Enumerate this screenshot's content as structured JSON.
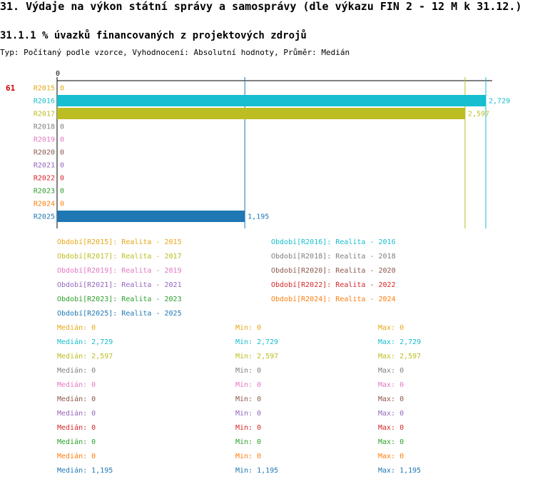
{
  "header": {
    "title": "31. Výdaje na výkon státní správy a samosprávy (dle výkazu FIN 2 - 12 M k 31.12.)",
    "subtitle": "31.1.1 % úvazků financovaných z projektových zdrojů",
    "typeline": "Typ: Počítaný podle vzorce, Vyhodnocení: Absolutní hodnoty, Průměr: Medián"
  },
  "chart_data": {
    "type": "bar",
    "orientation": "horizontal",
    "row_number": "61",
    "axis_zero_label": "0",
    "categories": [
      "R2015",
      "R2016",
      "R2017",
      "R2018",
      "R2019",
      "R2020",
      "R2021",
      "R2022",
      "R2023",
      "R2024",
      "R2025"
    ],
    "values": [
      0,
      2729,
      2597,
      0,
      0,
      0,
      0,
      0,
      0,
      0,
      1195
    ],
    "value_labels": [
      "0",
      "2,729",
      "2,597",
      "0",
      "0",
      "0",
      "0",
      "0",
      "0",
      "0",
      "1,195"
    ],
    "colors": [
      "#e6a817",
      "#17becf",
      "#bcbd22",
      "#7f7f7f",
      "#e377c2",
      "#8c564b",
      "#9467bd",
      "#d62728",
      "#2ca02c",
      "#ff7f0e",
      "#1f77b4"
    ],
    "xlim": [
      0,
      2830
    ],
    "reference_lines": [
      {
        "value": 1195,
        "color": "#1f77b4"
      },
      {
        "value": 2597,
        "color": "#bcbd22"
      },
      {
        "value": 2729,
        "color": "#17becf"
      }
    ],
    "legend": [
      "Období[R2015]: Realita - 2015",
      "Období[R2016]: Realita - 2016",
      "Období[R2017]: Realita - 2017",
      "Období[R2018]: Realita - 2018",
      "Období[R2019]: Realita - 2019",
      "Období[R2020]: Realita - 2020",
      "Období[R2021]: Realita - 2021",
      "Období[R2022]: Realita - 2022",
      "Období[R2023]: Realita - 2023",
      "Období[R2024]: Realita - 2024",
      "Období[R2025]: Realita - 2025"
    ],
    "stats": [
      {
        "median": "Medián: 0",
        "min": "Min: 0",
        "max": "Max: 0"
      },
      {
        "median": "Medián: 2,729",
        "min": "Min: 2,729",
        "max": "Max: 2,729"
      },
      {
        "median": "Medián: 2,597",
        "min": "Min: 2,597",
        "max": "Max: 2,597"
      },
      {
        "median": "Medián: 0",
        "min": "Min: 0",
        "max": "Max: 0"
      },
      {
        "median": "Medián: 0",
        "min": "Min: 0",
        "max": "Max: 0"
      },
      {
        "median": "Medián: 0",
        "min": "Min: 0",
        "max": "Max: 0"
      },
      {
        "median": "Medián: 0",
        "min": "Min: 0",
        "max": "Max: 0"
      },
      {
        "median": "Medián: 0",
        "min": "Min: 0",
        "max": "Max: 0"
      },
      {
        "median": "Medián: 0",
        "min": "Min: 0",
        "max": "Max: 0"
      },
      {
        "median": "Medián: 0",
        "min": "Min: 0",
        "max": "Max: 0"
      },
      {
        "median": "Medián: 1,195",
        "min": "Min: 1,195",
        "max": "Max: 1,195"
      }
    ]
  }
}
